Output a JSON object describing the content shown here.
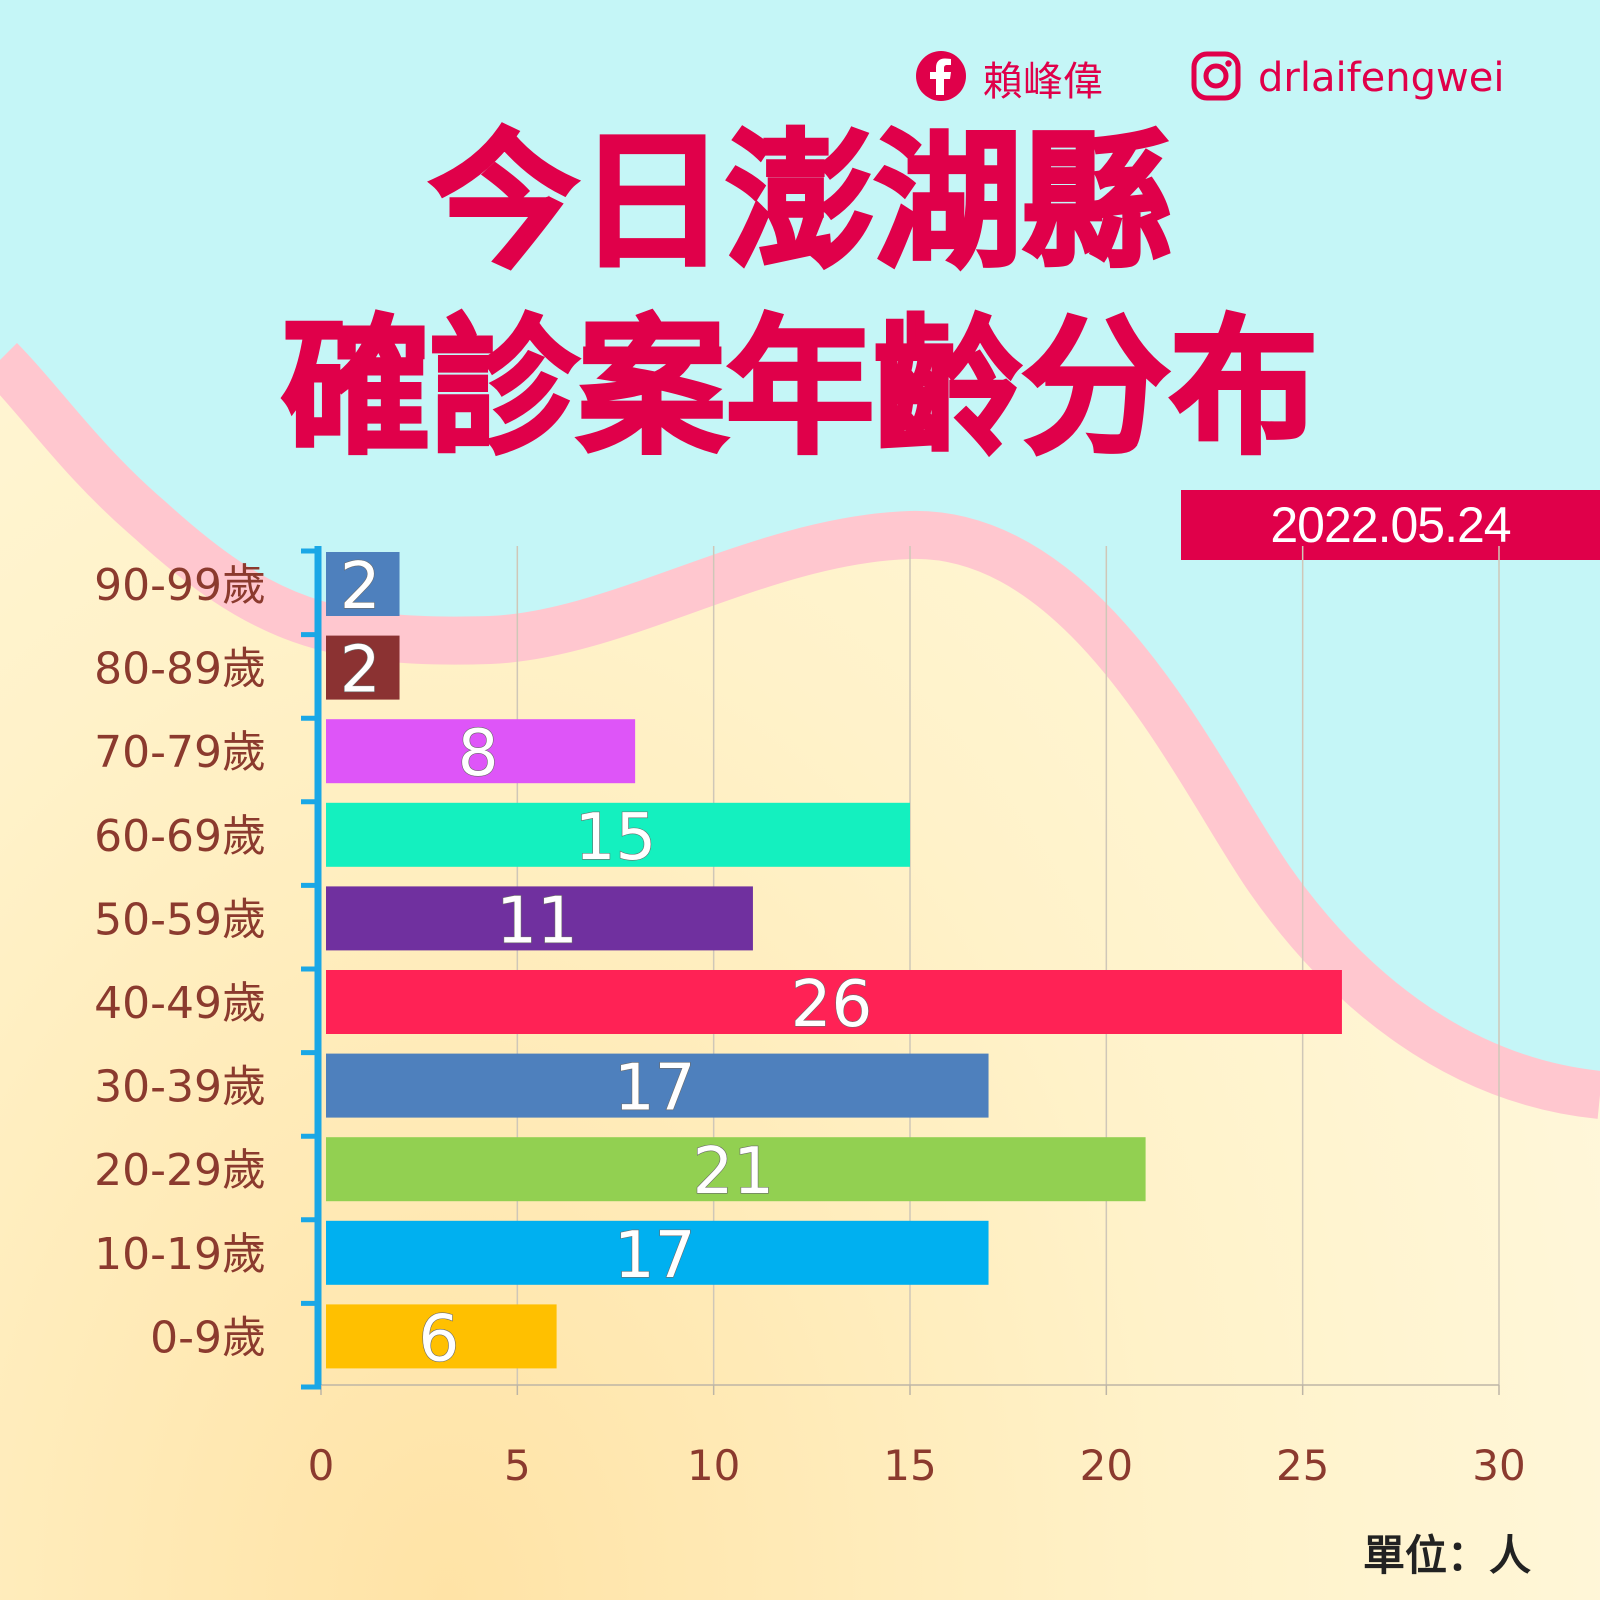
{
  "header": {
    "facebook_name": "賴峰偉",
    "instagram_handle": "drlaifengwei",
    "title_line1": "今日澎湖縣",
    "title_line2": "確診案年齡分布",
    "date": "2022.05.24",
    "unit": "單位：人"
  },
  "icons": {
    "facebook": "facebook-icon",
    "instagram": "instagram-icon"
  },
  "colors": {
    "brand": "#e0004a",
    "axis": "#1aa7e6",
    "label_text": "#8b3a2e",
    "sky": "#c5f6f7",
    "wave": "#ffc7cf"
  },
  "chart_data": {
    "type": "bar",
    "orientation": "horizontal",
    "categories": [
      "90-99歲",
      "80-89歲",
      "70-79歲",
      "60-69歲",
      "50-59歲",
      "40-49歲",
      "30-39歲",
      "20-29歲",
      "10-19歲",
      "0-9歲"
    ],
    "values": [
      2,
      2,
      8,
      15,
      11,
      26,
      17,
      21,
      17,
      6
    ],
    "bar_colors": [
      "#4e80bd",
      "#8b3232",
      "#de55f8",
      "#14f0bf",
      "#70309f",
      "#ff2255",
      "#4e80bd",
      "#92d051",
      "#00b0f0",
      "#ffc000"
    ],
    "xlim": [
      0,
      30
    ],
    "xticks": [
      0,
      5,
      10,
      15,
      20,
      25,
      30
    ],
    "grid": true,
    "data_labels": true
  }
}
